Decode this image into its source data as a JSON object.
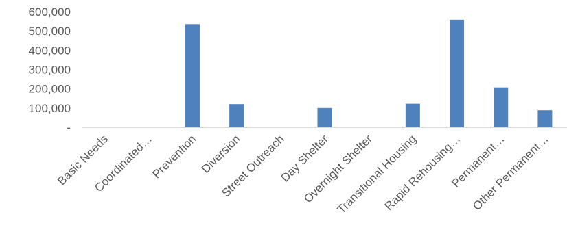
{
  "chart_data": {
    "type": "bar",
    "categories": [
      "Basic Needs",
      "Coordinated…",
      "Prevention",
      "Diversion",
      "Street Outreach",
      "Day Shelter",
      "Overnight Shelter",
      "Transitional Housing",
      "Rapid Rehousing…",
      "Permanent…",
      "Other Permanent…"
    ],
    "values": [
      0,
      0,
      535000,
      120000,
      0,
      100000,
      0,
      122000,
      558000,
      207000,
      88000
    ],
    "y_ticks": [
      {
        "value": 0,
        "label": "-"
      },
      {
        "value": 100000,
        "label": "100,000"
      },
      {
        "value": 200000,
        "label": "200,000"
      },
      {
        "value": 300000,
        "label": "300,000"
      },
      {
        "value": 400000,
        "label": "400,000"
      },
      {
        "value": 500000,
        "label": "500,000"
      },
      {
        "value": 600000,
        "label": "600,000"
      }
    ],
    "ylim": [
      0,
      600000
    ],
    "grid": false,
    "legend": "none",
    "bar_color": "#4f81bd",
    "axis_color": "#d9d9d9",
    "text_color": "#595959",
    "title": "",
    "xlabel": "",
    "ylabel": ""
  }
}
